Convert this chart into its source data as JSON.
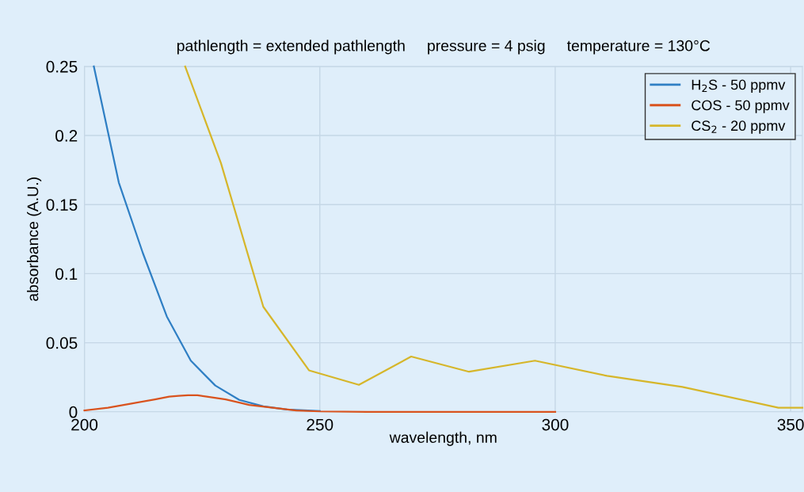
{
  "chart_data": {
    "type": "line",
    "title": "pathlength = extended pathlength     pressure = 4 psig     temperature = 130°C",
    "xlabel": "wavelength, nm",
    "ylabel": "absorbance (A.U.)",
    "xlim": [
      200,
      352.5
    ],
    "xticks": [
      200,
      250,
      300,
      350
    ],
    "ylim": [
      0,
      0.25
    ],
    "yticks": [
      0,
      0.05,
      0.1,
      0.15,
      0.2,
      0.25
    ],
    "grid": true,
    "legend": "top right",
    "line_style": "solid",
    "marker": "none",
    "series": [
      {
        "name": "H$_{2}$S - 50 ppmv",
        "color": "#2f7fc4",
        "x": [
          202,
          207.3,
          212.4,
          217.5,
          222.6,
          227.8,
          232.9,
          238,
          243,
          250
        ],
        "values": [
          0.25,
          0.166,
          0.115,
          0.069,
          0.037,
          0.019,
          0.0086,
          0.004,
          0.0017,
          0.0005
        ]
      },
      {
        "name": "COS - 50 ppmv",
        "color": "#d9531e",
        "x": [
          200,
          205,
          210,
          215,
          218,
          220,
          222,
          224,
          226,
          230,
          235,
          240,
          245,
          250,
          260,
          280,
          300
        ],
        "values": [
          0.001,
          0.003,
          0.006,
          0.009,
          0.011,
          0.0115,
          0.012,
          0.012,
          0.011,
          0.009,
          0.005,
          0.003,
          0.001,
          0.0003,
          0,
          0,
          0
        ]
      },
      {
        "name": "CS$_{2}$ - 20 ppmv",
        "color": "#d6b62a",
        "x": [
          221.4,
          229,
          238,
          247.7,
          258.3,
          269.4,
          281.7,
          295.7,
          311,
          327,
          347.4,
          352.5
        ],
        "values": [
          0.25,
          0.18,
          0.076,
          0.03,
          0.0195,
          0.04,
          0.029,
          0.037,
          0.026,
          0.018,
          0.003,
          0.003
        ]
      }
    ]
  }
}
